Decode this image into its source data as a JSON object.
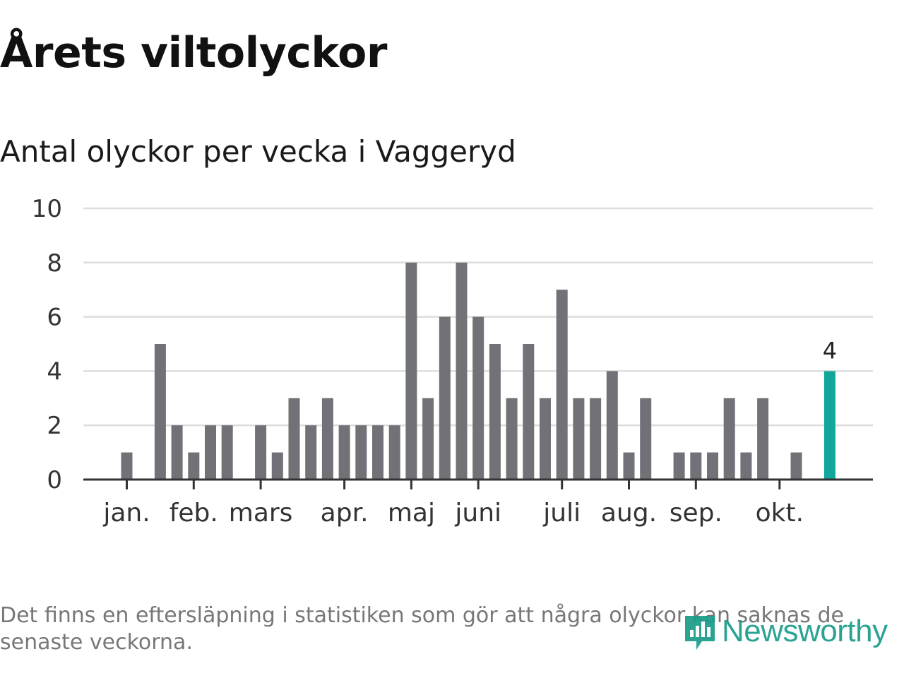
{
  "title": "Årets viltolyckor",
  "subtitle": "Antal olyckor per vecka i Vaggeryd",
  "footnote": "Det finns en eftersläpning i statistiken som gör att några olyckor kan saknas de senaste veckorna.",
  "logo": {
    "text": "Newsworthy",
    "icon": "newsworthy-logo-icon"
  },
  "colors": {
    "bar": "#727177",
    "highlight": "#12a79a",
    "grid": "#dddddd",
    "axis": "#333333"
  },
  "chart_data": {
    "type": "bar",
    "title": "Antal olyckor per vecka i Vaggeryd",
    "xlabel": "",
    "ylabel": "",
    "ylim": [
      0,
      10
    ],
    "yticks": [
      0,
      2,
      4,
      6,
      8,
      10
    ],
    "grid": true,
    "month_labels": [
      {
        "label": "jan.",
        "week": 1
      },
      {
        "label": "feb.",
        "week": 5
      },
      {
        "label": "mars",
        "week": 9
      },
      {
        "label": "apr.",
        "week": 14
      },
      {
        "label": "maj",
        "week": 18
      },
      {
        "label": "juni",
        "week": 22
      },
      {
        "label": "juli",
        "week": 27
      },
      {
        "label": "aug.",
        "week": 31
      },
      {
        "label": "sep.",
        "week": 35
      },
      {
        "label": "okt.",
        "week": 40
      }
    ],
    "weeks": [
      1,
      2,
      3,
      4,
      5,
      6,
      7,
      8,
      9,
      10,
      11,
      12,
      13,
      14,
      15,
      16,
      17,
      18,
      19,
      20,
      21,
      22,
      23,
      24,
      25,
      26,
      27,
      28,
      29,
      30,
      31,
      32,
      33,
      34,
      35,
      36,
      37,
      38,
      39,
      40,
      41,
      42,
      43
    ],
    "values": [
      1,
      0,
      5,
      2,
      1,
      2,
      2,
      0,
      2,
      1,
      3,
      2,
      3,
      2,
      2,
      2,
      2,
      8,
      3,
      6,
      8,
      6,
      5,
      3,
      5,
      3,
      7,
      3,
      3,
      4,
      1,
      3,
      0,
      1,
      1,
      1,
      3,
      1,
      3,
      0,
      1,
      0,
      4
    ],
    "highlight": {
      "week": 43,
      "value": 4,
      "label": "4"
    }
  }
}
